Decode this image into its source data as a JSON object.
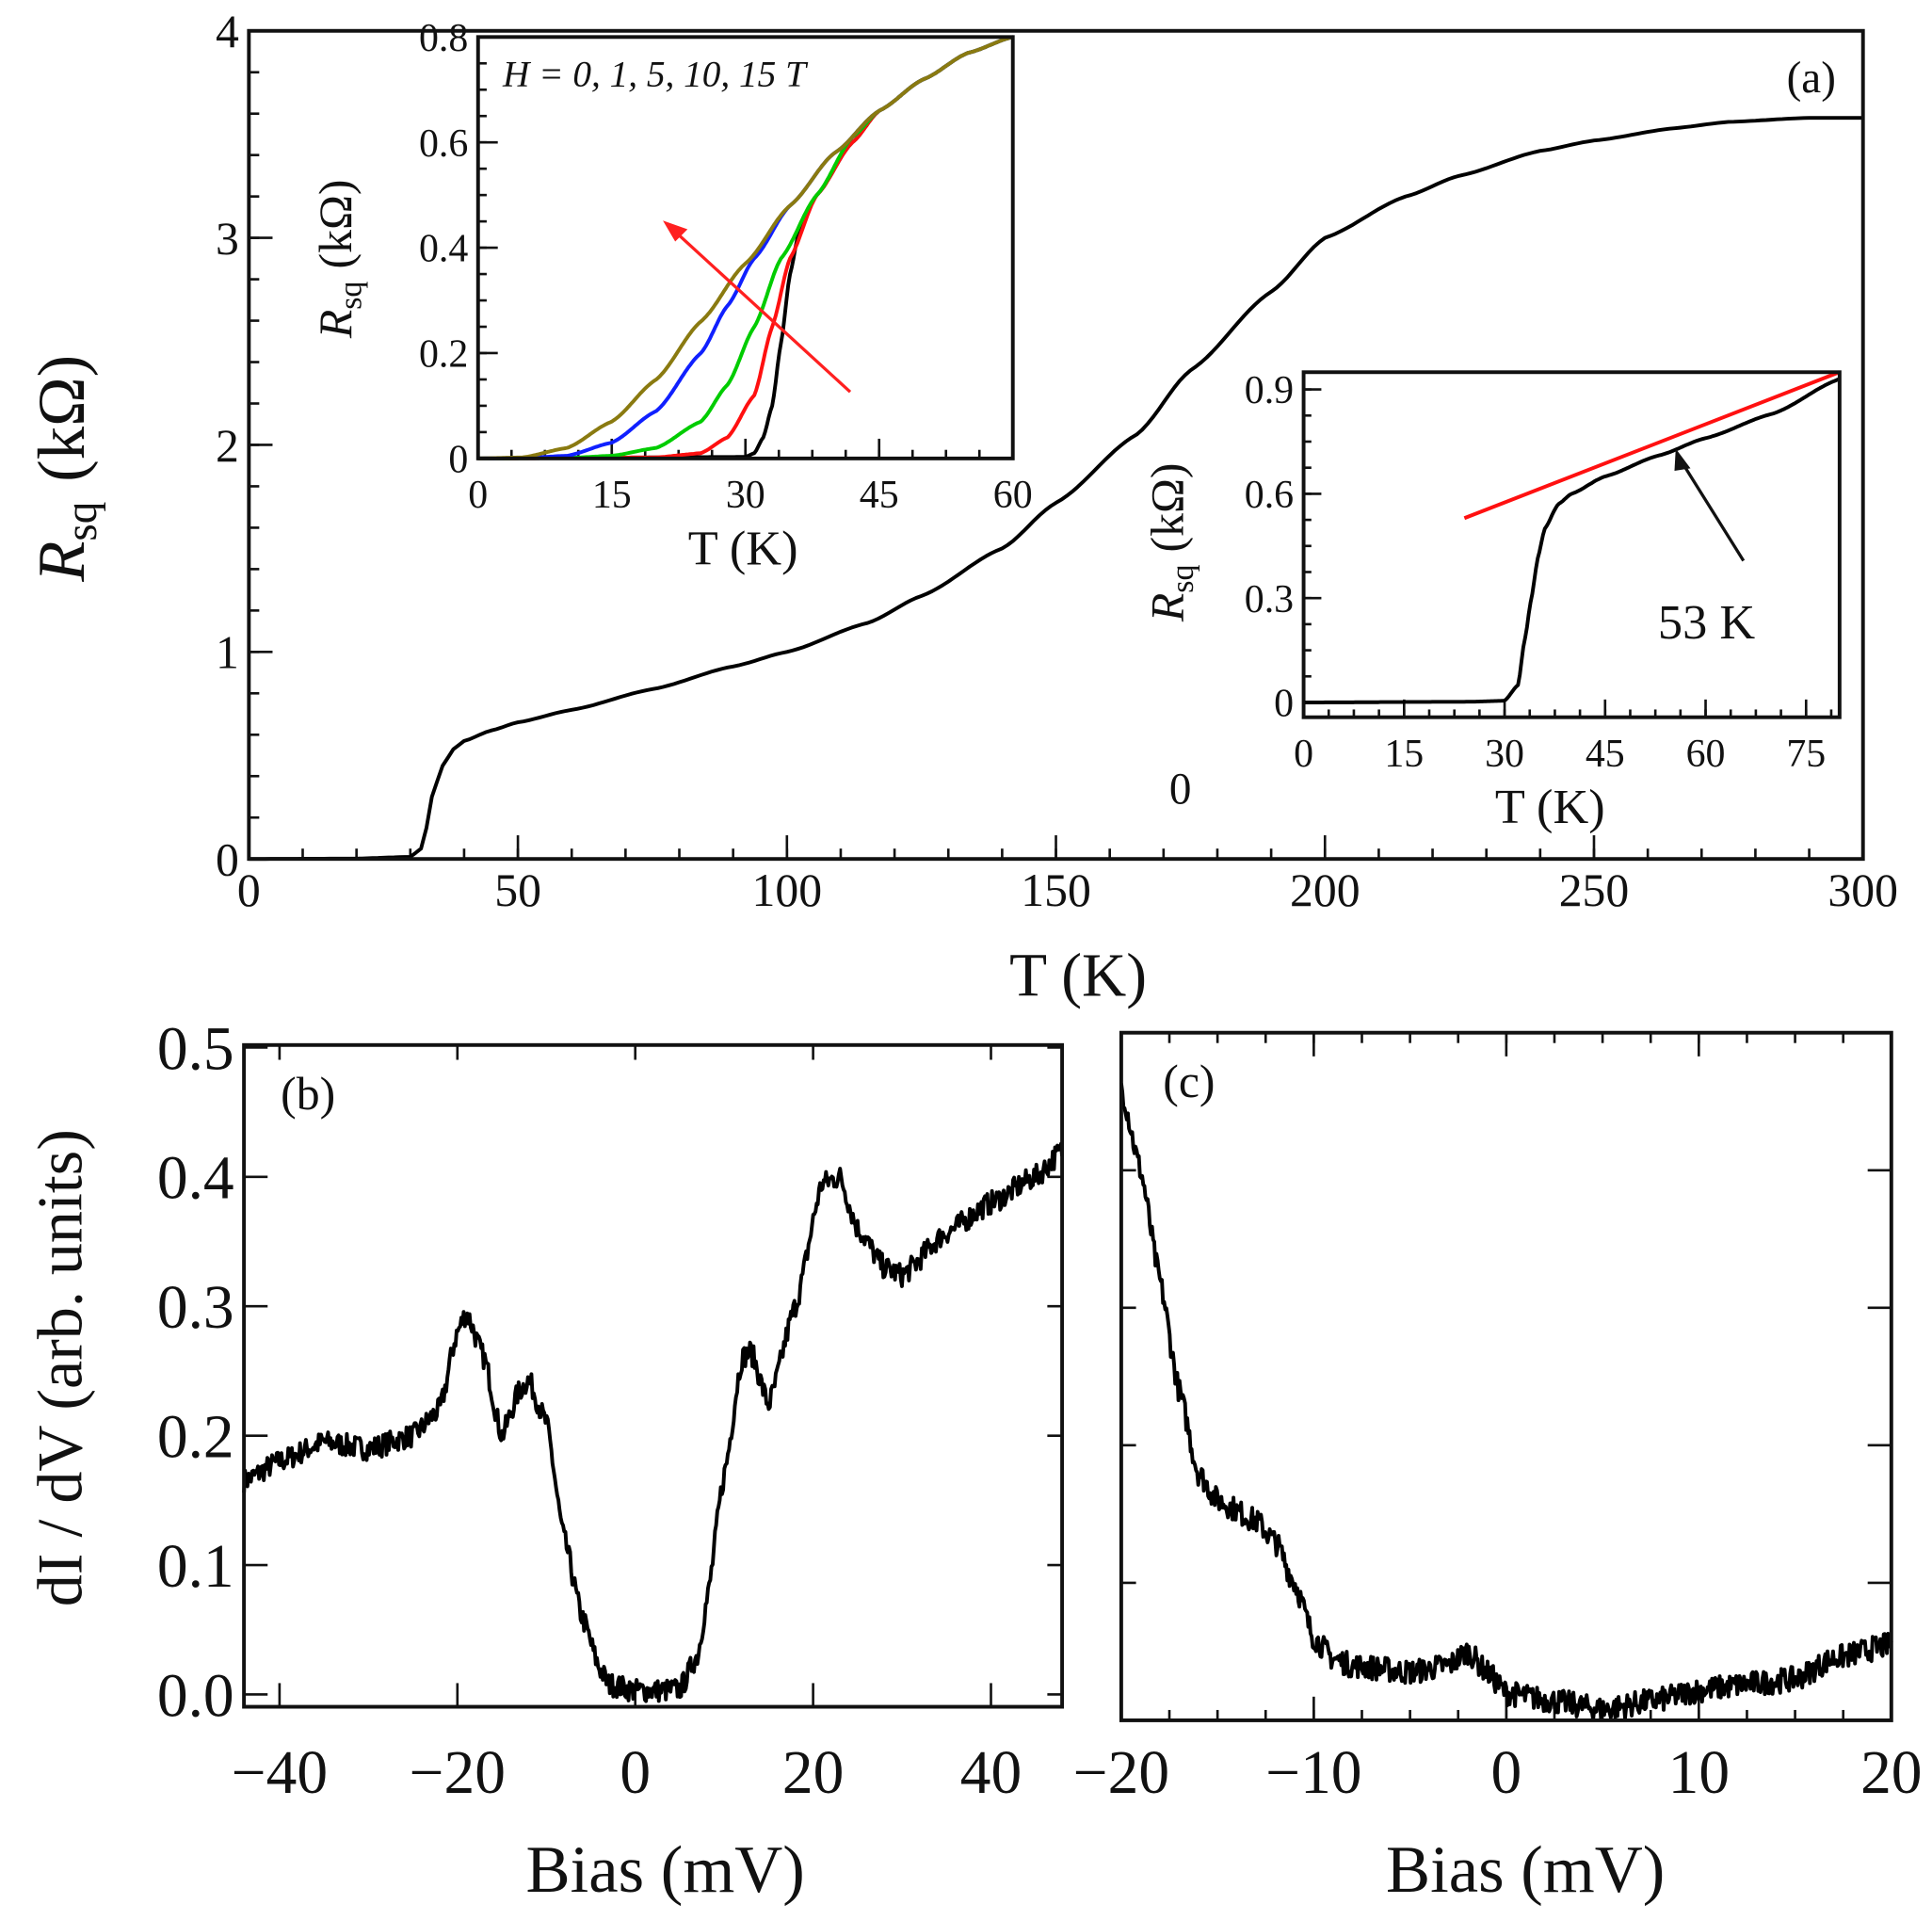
{
  "chart_data": [
    {
      "panel": "(a)",
      "type": "line",
      "xlabel": "T (K)",
      "ylabel": {
        "symbol": "R",
        "sub": "sq",
        "unit": "(kΩ)"
      },
      "xlim": [
        0,
        300
      ],
      "ylim": [
        0,
        4
      ],
      "xticks": [
        "0",
        "50",
        "100",
        "150",
        "200",
        "250",
        "300"
      ],
      "yticks": [
        "0",
        "1",
        "2",
        "3",
        "4"
      ],
      "series": [
        {
          "name": "Rsq",
          "color": "#000000",
          "x": [
            0,
            20,
            30,
            32,
            33,
            34,
            36,
            38,
            40,
            45,
            50,
            60,
            75,
            90,
            100,
            115,
            125,
            140,
            150,
            165,
            175,
            190,
            200,
            215,
            225,
            240,
            250,
            265,
            275,
            290,
            300
          ],
          "y": [
            0,
            0.002,
            0.01,
            0.05,
            0.15,
            0.3,
            0.45,
            0.53,
            0.57,
            0.62,
            0.66,
            0.72,
            0.82,
            0.93,
            1.0,
            1.14,
            1.27,
            1.5,
            1.72,
            2.05,
            2.36,
            2.74,
            3.0,
            3.2,
            3.3,
            3.42,
            3.47,
            3.53,
            3.56,
            3.58,
            3.58
          ]
        }
      ]
    },
    {
      "panel": "inset-field",
      "type": "line",
      "title": "H = 0, 1, 5, 10, 15 T",
      "xlabel": "T (K)",
      "ylabel": {
        "symbol": "R",
        "sub": "sq",
        "unit": "(kΩ)"
      },
      "xlim": [
        0,
        60
      ],
      "ylim": [
        0,
        0.8
      ],
      "xticks": [
        "0",
        "15",
        "30",
        "45",
        "60"
      ],
      "yticks": [
        "0",
        "0.2",
        "0.4",
        "0.6",
        "0.8"
      ],
      "arrow_color": "#ff2020",
      "series": [
        {
          "name": "0 T",
          "color": "#000000",
          "x": [
            0,
            30,
            31,
            32,
            33,
            34,
            35,
            36,
            38,
            42,
            45,
            50,
            55,
            60
          ],
          "y": [
            0,
            0.003,
            0.01,
            0.04,
            0.1,
            0.22,
            0.35,
            0.43,
            0.5,
            0.6,
            0.66,
            0.72,
            0.77,
            0.8
          ]
        },
        {
          "name": "1 T",
          "color": "#ff1010",
          "x": [
            0,
            20,
            25,
            28,
            31,
            33,
            35,
            38,
            42,
            45,
            50,
            55,
            60
          ],
          "y": [
            0,
            0.002,
            0.01,
            0.04,
            0.12,
            0.25,
            0.38,
            0.5,
            0.6,
            0.66,
            0.72,
            0.77,
            0.8
          ]
        },
        {
          "name": "5 T",
          "color": "#00cc00",
          "x": [
            0,
            10,
            15,
            20,
            25,
            28,
            31,
            34,
            38,
            42,
            45,
            50,
            55,
            60
          ],
          "y": [
            0,
            0.001,
            0.005,
            0.02,
            0.07,
            0.14,
            0.25,
            0.38,
            0.5,
            0.61,
            0.66,
            0.72,
            0.77,
            0.8
          ]
        },
        {
          "name": "10 T",
          "color": "#1020ff",
          "x": [
            0,
            5,
            10,
            15,
            20,
            25,
            28,
            31,
            35,
            40,
            45,
            50,
            55,
            60
          ],
          "y": [
            0,
            0.001,
            0.005,
            0.03,
            0.09,
            0.2,
            0.29,
            0.38,
            0.48,
            0.58,
            0.66,
            0.72,
            0.77,
            0.8
          ]
        },
        {
          "name": "15 T",
          "color": "#8a7a10",
          "x": [
            0,
            5,
            10,
            15,
            20,
            25,
            30,
            35,
            40,
            45,
            50,
            55,
            60
          ],
          "y": [
            0,
            0.002,
            0.02,
            0.07,
            0.15,
            0.26,
            0.37,
            0.48,
            0.58,
            0.66,
            0.72,
            0.77,
            0.8
          ]
        }
      ]
    },
    {
      "panel": "inset-linear",
      "type": "line",
      "xlabel": "T (K)",
      "ylabel": {
        "symbol": "R",
        "sub": "sq",
        "unit": "(kΩ)"
      },
      "xlim": [
        0,
        80
      ],
      "ylim": [
        0,
        0.9
      ],
      "xticks": [
        "0",
        "15",
        "30",
        "45",
        "60",
        "75"
      ],
      "yticks": [
        "0",
        "0.3",
        "0.6",
        "0.9"
      ],
      "annotation": "53 K",
      "stray_label": "0",
      "series": [
        {
          "name": "Rsq",
          "color": "#000000",
          "x": [
            0,
            25,
            30,
            32,
            33,
            34,
            35,
            36,
            38,
            40,
            45,
            53,
            60,
            70,
            80
          ],
          "y": [
            0,
            0.002,
            0.005,
            0.05,
            0.18,
            0.3,
            0.42,
            0.5,
            0.57,
            0.6,
            0.65,
            0.71,
            0.76,
            0.83,
            0.93
          ]
        },
        {
          "name": "linear fit",
          "color": "#ff1010",
          "x": [
            24,
            80
          ],
          "y": [
            0.53,
            0.95
          ]
        }
      ]
    },
    {
      "panel": "(b)",
      "type": "line",
      "xlabel": "Bias (mV)",
      "ylabel": "dI / dV (arb. units)",
      "xlim": [
        -44,
        48
      ],
      "ylim": [
        0,
        0.5
      ],
      "xticks": [
        "−40",
        "−20",
        "0",
        "20",
        "40"
      ],
      "yticks": [
        "0.0",
        "0.1",
        "0.2",
        "0.3",
        "0.4",
        "0.5"
      ],
      "series": [
        {
          "name": "dI/dV",
          "color": "#000000",
          "x": [
            -44,
            -40,
            -35,
            -30,
            -25,
            -22,
            -20,
            -19,
            -17,
            -15,
            -13,
            -12,
            -10,
            -8,
            -6,
            -4,
            -3,
            0,
            3,
            5,
            7,
            8,
            10,
            12,
            13,
            15,
            18,
            21,
            23,
            25,
            28,
            30,
            35,
            40,
            45,
            48
          ],
          "y": [
            0.165,
            0.18,
            0.195,
            0.19,
            0.2,
            0.22,
            0.28,
            0.295,
            0.26,
            0.2,
            0.235,
            0.243,
            0.21,
            0.12,
            0.06,
            0.02,
            0.008,
            0.003,
            0.003,
            0.004,
            0.03,
            0.07,
            0.17,
            0.26,
            0.265,
            0.224,
            0.3,
            0.395,
            0.4,
            0.36,
            0.33,
            0.324,
            0.357,
            0.38,
            0.4,
            0.42
          ]
        }
      ]
    },
    {
      "panel": "(c)",
      "type": "line",
      "xlabel": "Bias (mV)",
      "ylabel": "",
      "xlim": [
        -20,
        20
      ],
      "ylim": [
        0,
        0.5
      ],
      "xticks": [
        "−20",
        "−10",
        "0",
        "10",
        "20"
      ],
      "series": [
        {
          "name": "dI/dV",
          "color": "#000000",
          "x": [
            -20,
            -19,
            -18,
            -17,
            -16,
            -15,
            -13,
            -12,
            -11,
            -10,
            -9,
            -8,
            -5,
            -3,
            -2,
            -1,
            0,
            2,
            5,
            8,
            10,
            13,
            15,
            17,
            20
          ],
          "y": [
            0.46,
            0.4,
            0.32,
            0.24,
            0.18,
            0.16,
            0.145,
            0.13,
            0.1,
            0.06,
            0.045,
            0.04,
            0.035,
            0.04,
            0.05,
            0.035,
            0.02,
            0.015,
            0.008,
            0.015,
            0.022,
            0.027,
            0.03,
            0.045,
            0.055
          ]
        }
      ]
    }
  ]
}
